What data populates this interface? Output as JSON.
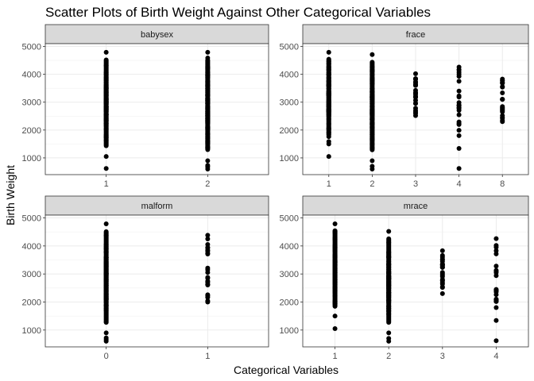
{
  "chart_data": {
    "type": "scatter",
    "title": "Scatter Plots of Birth Weight Against Other Categorical Variables",
    "xlabel": "Categorical Variables",
    "ylabel": "Birth Weight",
    "ylim": [
      400,
      5100
    ],
    "yticks": [
      1000,
      2000,
      3000,
      4000,
      5000
    ],
    "grid": true,
    "point_color": "#000000",
    "facets": [
      {
        "name": "babysex",
        "categories": [
          "1",
          "2"
        ],
        "points": [
          {
            "x": "1",
            "ymin": 1050,
            "ymax": 4790,
            "outliers": [
              620
            ]
          },
          {
            "x": "2",
            "ymin": 900,
            "ymax": 4790,
            "outliers": [
              600,
              680,
              730
            ]
          }
        ]
      },
      {
        "name": "frace",
        "categories": [
          "1",
          "2",
          "3",
          "4",
          "8"
        ],
        "points": [
          {
            "x": "1",
            "ymin": 1500,
            "ymax": 4790,
            "outliers": [
              1050
            ]
          },
          {
            "x": "2",
            "ymin": 900,
            "ymax": 4710,
            "outliers": [
              600,
              700
            ]
          },
          {
            "x": "3",
            "ymin": 2520,
            "ymax": 4020,
            "outliers": []
          },
          {
            "x": "4",
            "ymin": 1800,
            "ymax": 4260,
            "outliers": [
              1340,
              620
            ]
          },
          {
            "x": "8",
            "ymin": 2300,
            "ymax": 3830,
            "outliers": []
          }
        ]
      },
      {
        "name": "malform",
        "categories": [
          "0",
          "1"
        ],
        "points": [
          {
            "x": "0",
            "ymin": 900,
            "ymax": 4790,
            "outliers": [
              600,
              660,
              720
            ]
          },
          {
            "x": "1",
            "ymin": 2000,
            "ymax": 4380,
            "outliers": []
          }
        ]
      },
      {
        "name": "mrace",
        "categories": [
          "1",
          "2",
          "3",
          "4"
        ],
        "points": [
          {
            "x": "1",
            "ymin": 1500,
            "ymax": 4790,
            "outliers": [
              1050
            ]
          },
          {
            "x": "2",
            "ymin": 900,
            "ymax": 4520,
            "outliers": [
              600,
              700
            ]
          },
          {
            "x": "3",
            "ymin": 2520,
            "ymax": 3830,
            "outliers": [
              2300
            ]
          },
          {
            "x": "4",
            "ymin": 1800,
            "ymax": 4260,
            "outliers": [
              1340,
              620
            ]
          }
        ]
      }
    ]
  }
}
